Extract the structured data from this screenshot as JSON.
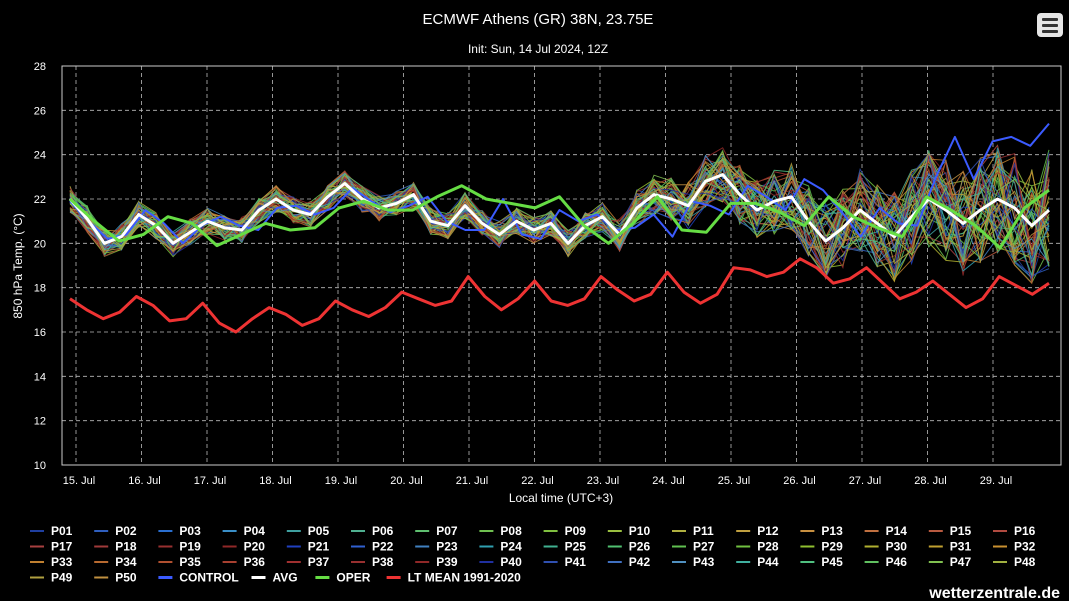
{
  "chart_data": {
    "type": "line",
    "title": "ECMWF Athens (GR) 38N, 23.75E",
    "subtitle": "Init: Sun, 14 Jul 2024, 12Z",
    "xlabel": "Local time (UTC+3)",
    "ylabel": "850 hPa Temp. (°C)",
    "ylim": [
      10,
      28
    ],
    "yticks": [
      "10",
      "12",
      "14",
      "16",
      "18",
      "20",
      "22",
      "24",
      "26",
      "28"
    ],
    "x_tick_labels": [
      "15. Jul",
      "16. Jul",
      "17. Jul",
      "18. Jul",
      "19. Jul",
      "20. Jul",
      "21. Jul",
      "22. Jul",
      "23. Jul",
      "24. Jul",
      "25. Jul",
      "26. Jul",
      "27. Jul",
      "28. Jul",
      "29. Jul"
    ],
    "grid": true,
    "legend_position": "bottom",
    "ensemble_members": [
      "P01",
      "P02",
      "P03",
      "P04",
      "P05",
      "P06",
      "P07",
      "P08",
      "P09",
      "P10",
      "P11",
      "P12",
      "P13",
      "P14",
      "P15",
      "P16",
      "P17",
      "P18",
      "P19",
      "P20",
      "P21",
      "P22",
      "P23",
      "P24",
      "P25",
      "P26",
      "P27",
      "P28",
      "P29",
      "P30",
      "P31",
      "P32",
      "P33",
      "P34",
      "P35",
      "P36",
      "P37",
      "P38",
      "P39",
      "P40",
      "P41",
      "P42",
      "P43",
      "P44",
      "P45",
      "P46",
      "P47",
      "P48",
      "P49",
      "P50"
    ],
    "member_colors": [
      "#1f3fa0",
      "#2f5fbf",
      "#2a6fd0",
      "#3a8fc8",
      "#3fa0a0",
      "#4fb090",
      "#5fbf70",
      "#6fc050",
      "#80c040",
      "#9abf40",
      "#b0b040",
      "#c0a040",
      "#c89040",
      "#c07040",
      "#b85a40",
      "#b04a40",
      "#a84040",
      "#a03a3a",
      "#983030",
      "#902828",
      "#2040c0",
      "#3060d0",
      "#4080c0",
      "#30a0b0",
      "#40b090",
      "#50c070",
      "#60c050",
      "#70c040",
      "#90c030",
      "#b0b030",
      "#c0a030",
      "#c89030",
      "#c08030",
      "#b86a30",
      "#b05030",
      "#a84030",
      "#a03030",
      "#983030",
      "#902828",
      "#2030a0",
      "#3050b0",
      "#4070c0",
      "#5090c0",
      "#40b0a0",
      "#50c080",
      "#60c060",
      "#80c050",
      "#a0b040",
      "#b0a040",
      "#c09040"
    ],
    "series_fixed": [
      {
        "name": "CONTROL",
        "color": "#3b5bff",
        "values": [
          21.9,
          21.0,
          20.2,
          20.4,
          21.5,
          20.9,
          20.0,
          20.8,
          21.2,
          20.8,
          20.6,
          21.6,
          21.7,
          21.3,
          21.6,
          22.5,
          21.9,
          21.4,
          21.7,
          22.1,
          21.0,
          20.6,
          20.6,
          22.0,
          20.4,
          20.2,
          21.5,
          21.0,
          21.3,
          20.6,
          20.7,
          21.3,
          20.3,
          21.9,
          21.7,
          21.3,
          22.6,
          22.1,
          21.5,
          22.9,
          22.4,
          21.4,
          20.3,
          21.6,
          20.9,
          20.8,
          23.0,
          24.8,
          22.9,
          24.6,
          24.8,
          24.4,
          25.4
        ]
      },
      {
        "name": "AVG",
        "color": "#ffffff",
        "values": [
          22.0,
          21.1,
          20.0,
          20.3,
          21.3,
          20.8,
          20.0,
          20.5,
          21.0,
          20.7,
          20.6,
          21.5,
          22.0,
          21.5,
          21.3,
          22.1,
          22.7,
          22.0,
          21.6,
          21.8,
          22.2,
          21.0,
          20.8,
          21.7,
          20.9,
          20.4,
          21.0,
          20.6,
          20.9,
          20.0,
          20.8,
          21.2,
          20.4,
          21.6,
          22.2,
          22.0,
          21.7,
          22.8,
          23.1,
          22.2,
          21.5,
          21.9,
          22.1,
          21.0,
          20.1,
          20.7,
          21.5,
          20.9,
          20.3,
          21.2,
          22.0,
          21.5,
          20.9,
          21.5,
          22.0,
          21.6,
          20.8,
          21.5
        ]
      },
      {
        "name": "OPER",
        "color": "#66dd44",
        "values": [
          22.0,
          21.0,
          20.1,
          20.4,
          21.2,
          20.9,
          19.9,
          20.4,
          20.9,
          20.6,
          20.7,
          21.6,
          21.9,
          21.5,
          21.5,
          22.1,
          22.6,
          22.0,
          21.8,
          21.6,
          22.1,
          20.8,
          20.0,
          20.9,
          22.1,
          20.6,
          20.5,
          21.8,
          21.8,
          21.4,
          20.8,
          22.1,
          21.2,
          20.7,
          20.3,
          22.1,
          21.5,
          20.8,
          19.8,
          21.6,
          22.4
        ]
      },
      {
        "name": "LT MEAN 1991-2020",
        "color": "#ee3333",
        "values": [
          17.5,
          17.0,
          16.6,
          16.9,
          17.6,
          17.2,
          16.5,
          16.6,
          17.3,
          16.4,
          16.0,
          16.6,
          17.1,
          16.8,
          16.3,
          16.6,
          17.4,
          17.0,
          16.7,
          17.1,
          17.8,
          17.5,
          17.2,
          17.4,
          18.5,
          17.6,
          17.0,
          17.5,
          18.3,
          17.4,
          17.2,
          17.5,
          18.5,
          17.9,
          17.4,
          17.7,
          18.7,
          17.8,
          17.3,
          17.7,
          18.9,
          18.8,
          18.5,
          18.7,
          19.3,
          18.9,
          18.2,
          18.4,
          18.9,
          18.2,
          17.5,
          17.8,
          18.3,
          17.7,
          17.1,
          17.5,
          18.5,
          18.1,
          17.7,
          18.2
        ]
      }
    ]
  },
  "legend_items": [
    "P01",
    "P02",
    "P03",
    "P04",
    "P05",
    "P06",
    "P07",
    "P08",
    "P09",
    "P10",
    "P11",
    "P12",
    "P13",
    "P14",
    "P15",
    "P16",
    "P17",
    "P18",
    "P19",
    "P20",
    "P21",
    "P22",
    "P23",
    "P24",
    "P25",
    "P26",
    "P27",
    "P28",
    "P29",
    "P30",
    "P31",
    "P32",
    "P33",
    "P34",
    "P35",
    "P36",
    "P37",
    "P38",
    "P39",
    "P40",
    "P41",
    "P42",
    "P43",
    "P44",
    "P45",
    "P46",
    "P47",
    "P48",
    "P49",
    "P50",
    "CONTROL",
    "AVG",
    "OPER",
    "LT MEAN 1991-2020"
  ],
  "credit": "wetterzentrale.de",
  "menu_icon": "hamburger-menu-icon"
}
